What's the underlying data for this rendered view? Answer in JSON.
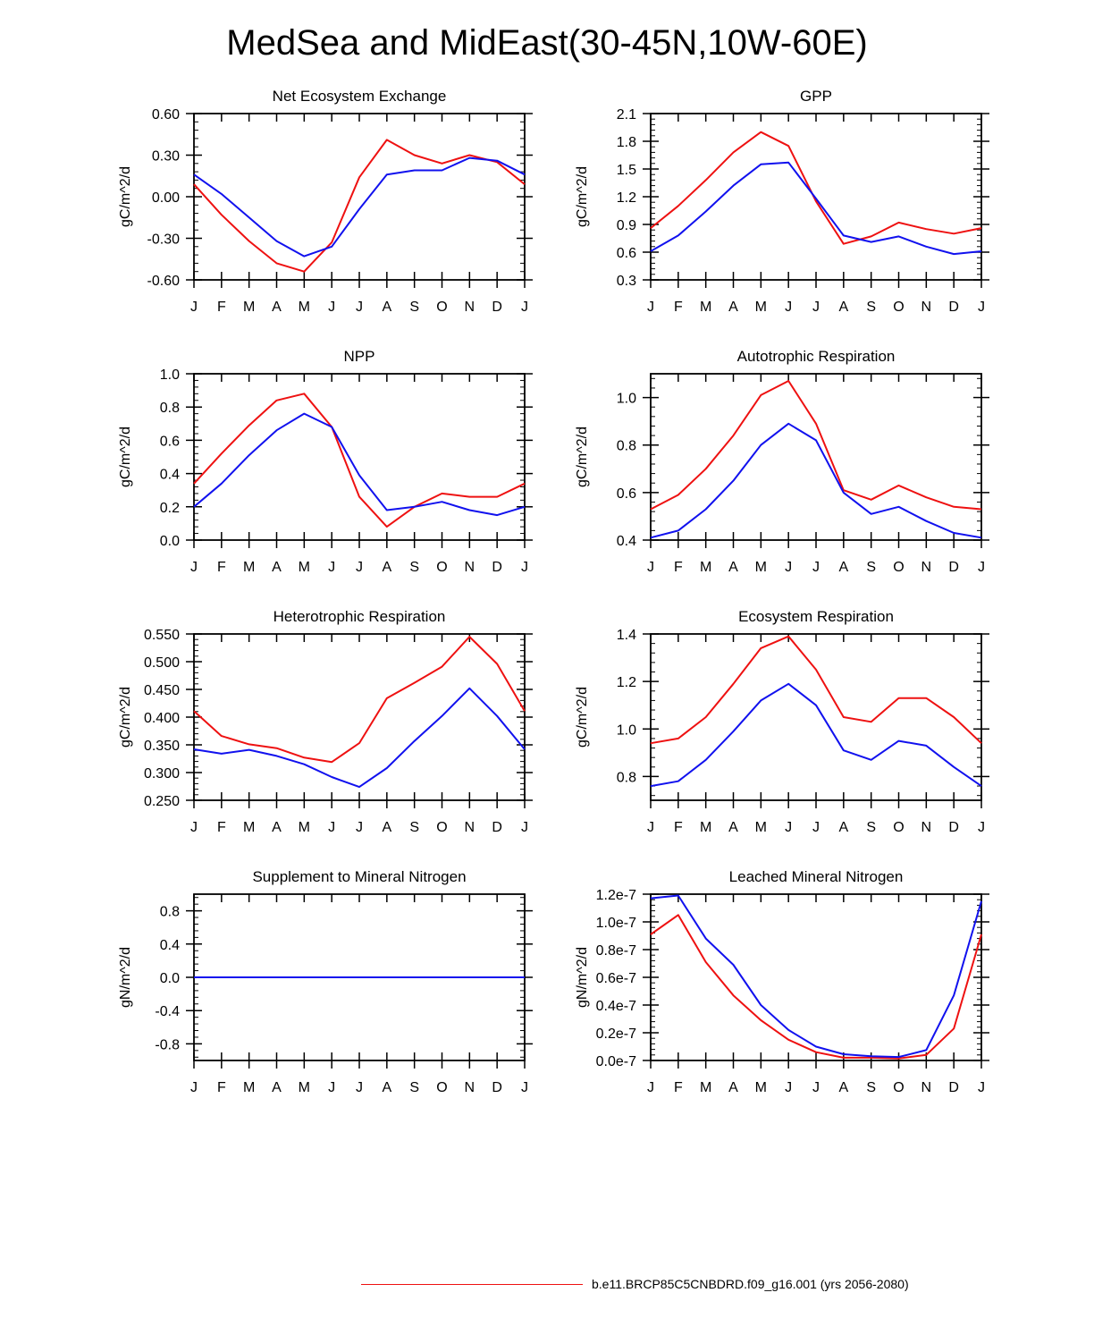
{
  "title": "MedSea and MidEast(30-45N,10W-60E)",
  "colors": {
    "series_red": "#ee1111",
    "series_blue": "#1111ee",
    "axis": "#000000"
  },
  "legend": {
    "label": "b.e11.BRCP85C5CNBDRD.f09_g16.001 (yrs 2056-2080)",
    "color": "#ee1111"
  },
  "chart_data": [
    {
      "type": "line",
      "title": "Net Ecosystem Exchange",
      "xlabel": "",
      "ylabel": "gC/m^2/d",
      "categories": [
        "J",
        "F",
        "M",
        "A",
        "M",
        "J",
        "J",
        "A",
        "S",
        "O",
        "N",
        "D",
        "J"
      ],
      "ylim": [
        -0.6,
        0.6
      ],
      "yticks": [
        -0.6,
        -0.3,
        0.0,
        0.3,
        0.6
      ],
      "ytick_labels": [
        "-0.60",
        "-0.30",
        "0.00",
        "0.30",
        "0.60"
      ],
      "series": [
        {
          "name": "red",
          "color": "#ee1111",
          "values": [
            0.09,
            -0.13,
            -0.32,
            -0.48,
            -0.54,
            -0.33,
            0.14,
            0.41,
            0.3,
            0.24,
            0.3,
            0.25,
            0.09
          ]
        },
        {
          "name": "blue",
          "color": "#1111ee",
          "values": [
            0.16,
            0.02,
            -0.15,
            -0.32,
            -0.43,
            -0.36,
            -0.09,
            0.16,
            0.19,
            0.19,
            0.28,
            0.26,
            0.16
          ]
        }
      ]
    },
    {
      "type": "line",
      "title": "GPP",
      "xlabel": "",
      "ylabel": "gC/m^2/d",
      "categories": [
        "J",
        "F",
        "M",
        "A",
        "M",
        "J",
        "J",
        "A",
        "S",
        "O",
        "N",
        "D",
        "J"
      ],
      "ylim": [
        0.3,
        2.1
      ],
      "yticks": [
        0.3,
        0.6,
        0.9,
        1.2,
        1.5,
        1.8,
        2.1
      ],
      "ytick_labels": [
        "0.3",
        "0.6",
        "0.9",
        "1.2",
        "1.5",
        "1.8",
        "2.1"
      ],
      "series": [
        {
          "name": "red",
          "color": "#ee1111",
          "values": [
            0.86,
            1.1,
            1.38,
            1.68,
            1.9,
            1.75,
            1.15,
            0.69,
            0.77,
            0.92,
            0.85,
            0.8,
            0.86
          ]
        },
        {
          "name": "blue",
          "color": "#1111ee",
          "values": [
            0.61,
            0.78,
            1.04,
            1.32,
            1.55,
            1.57,
            1.18,
            0.78,
            0.71,
            0.77,
            0.66,
            0.58,
            0.61
          ]
        }
      ]
    },
    {
      "type": "line",
      "title": "NPP",
      "xlabel": "",
      "ylabel": "gC/m^2/d",
      "categories": [
        "J",
        "F",
        "M",
        "A",
        "M",
        "J",
        "J",
        "A",
        "S",
        "O",
        "N",
        "D",
        "J"
      ],
      "ylim": [
        0.0,
        1.0
      ],
      "yticks": [
        0.0,
        0.2,
        0.4,
        0.6,
        0.8,
        1.0
      ],
      "ytick_labels": [
        "0.0",
        "0.2",
        "0.4",
        "0.6",
        "0.8",
        "1.0"
      ],
      "series": [
        {
          "name": "red",
          "color": "#ee1111",
          "values": [
            0.34,
            0.52,
            0.69,
            0.84,
            0.88,
            0.68,
            0.26,
            0.08,
            0.2,
            0.28,
            0.26,
            0.26,
            0.34
          ]
        },
        {
          "name": "blue",
          "color": "#1111ee",
          "values": [
            0.2,
            0.34,
            0.51,
            0.66,
            0.76,
            0.68,
            0.39,
            0.18,
            0.2,
            0.23,
            0.18,
            0.15,
            0.2
          ]
        }
      ]
    },
    {
      "type": "line",
      "title": "Autotrophic Respiration",
      "xlabel": "",
      "ylabel": "gC/m^2/d",
      "categories": [
        "J",
        "F",
        "M",
        "A",
        "M",
        "J",
        "J",
        "A",
        "S",
        "O",
        "N",
        "D",
        "J"
      ],
      "ylim": [
        0.4,
        1.1
      ],
      "yticks": [
        0.4,
        0.6,
        0.8,
        1.0
      ],
      "ytick_labels": [
        "0.4",
        "0.6",
        "0.8",
        "1.0"
      ],
      "series": [
        {
          "name": "red",
          "color": "#ee1111",
          "values": [
            0.53,
            0.59,
            0.7,
            0.84,
            1.01,
            1.07,
            0.89,
            0.61,
            0.57,
            0.63,
            0.58,
            0.54,
            0.53
          ]
        },
        {
          "name": "blue",
          "color": "#1111ee",
          "values": [
            0.41,
            0.44,
            0.53,
            0.65,
            0.8,
            0.89,
            0.82,
            0.6,
            0.51,
            0.54,
            0.48,
            0.43,
            0.41
          ]
        }
      ]
    },
    {
      "type": "line",
      "title": "Heterotrophic Respiration",
      "xlabel": "",
      "ylabel": "gC/m^2/d",
      "categories": [
        "J",
        "F",
        "M",
        "A",
        "M",
        "J",
        "J",
        "A",
        "S",
        "O",
        "N",
        "D",
        "J"
      ],
      "ylim": [
        0.25,
        0.55
      ],
      "yticks": [
        0.25,
        0.3,
        0.35,
        0.4,
        0.45,
        0.5,
        0.55
      ],
      "ytick_labels": [
        "0.250",
        "0.300",
        "0.350",
        "0.400",
        "0.450",
        "0.500",
        "0.550"
      ],
      "series": [
        {
          "name": "red",
          "color": "#ee1111",
          "values": [
            0.411,
            0.366,
            0.351,
            0.344,
            0.327,
            0.319,
            0.353,
            0.434,
            0.462,
            0.491,
            0.545,
            0.496,
            0.411
          ]
        },
        {
          "name": "blue",
          "color": "#1111ee",
          "values": [
            0.342,
            0.334,
            0.341,
            0.33,
            0.315,
            0.292,
            0.274,
            0.308,
            0.357,
            0.402,
            0.452,
            0.402,
            0.342
          ]
        }
      ]
    },
    {
      "type": "line",
      "title": "Ecosystem Respiration",
      "xlabel": "",
      "ylabel": "gC/m^2/d",
      "categories": [
        "J",
        "F",
        "M",
        "A",
        "M",
        "J",
        "J",
        "A",
        "S",
        "O",
        "N",
        "D",
        "J"
      ],
      "ylim": [
        0.7,
        1.4
      ],
      "yticks": [
        0.8,
        1.0,
        1.2,
        1.4
      ],
      "ytick_labels": [
        "0.8",
        "1.0",
        "1.2",
        "1.4"
      ],
      "series": [
        {
          "name": "red",
          "color": "#ee1111",
          "values": [
            0.94,
            0.96,
            1.05,
            1.19,
            1.34,
            1.39,
            1.25,
            1.05,
            1.03,
            1.13,
            1.13,
            1.05,
            0.94
          ]
        },
        {
          "name": "blue",
          "color": "#1111ee",
          "values": [
            0.76,
            0.78,
            0.87,
            0.99,
            1.12,
            1.19,
            1.1,
            0.91,
            0.87,
            0.95,
            0.93,
            0.84,
            0.76
          ]
        }
      ]
    },
    {
      "type": "line",
      "title": "Supplement to Mineral Nitrogen",
      "xlabel": "",
      "ylabel": "gN/m^2/d",
      "categories": [
        "J",
        "F",
        "M",
        "A",
        "M",
        "J",
        "J",
        "A",
        "S",
        "O",
        "N",
        "D",
        "J"
      ],
      "ylim": [
        -1.0,
        1.0
      ],
      "yticks": [
        -0.8,
        -0.4,
        0.0,
        0.4,
        0.8
      ],
      "ytick_labels": [
        "-0.8",
        "-0.4",
        "0.0",
        "0.4",
        "0.8"
      ],
      "series": [
        {
          "name": "red",
          "color": "#ee1111",
          "values": [
            0,
            0,
            0,
            0,
            0,
            0,
            0,
            0,
            0,
            0,
            0,
            0,
            0
          ]
        },
        {
          "name": "blue",
          "color": "#1111ee",
          "values": [
            0,
            0,
            0,
            0,
            0,
            0,
            0,
            0,
            0,
            0,
            0,
            0,
            0
          ]
        }
      ]
    },
    {
      "type": "line",
      "title": "Leached Mineral Nitrogen",
      "xlabel": "",
      "ylabel": "gN/m^2/d",
      "categories": [
        "J",
        "F",
        "M",
        "A",
        "M",
        "J",
        "J",
        "A",
        "S",
        "O",
        "N",
        "D",
        "J"
      ],
      "ylim": [
        0.0,
        1.2e-07
      ],
      "yticks": [
        0.0,
        2e-08,
        4e-08,
        6e-08,
        8e-08,
        1e-07,
        1.2e-07
      ],
      "ytick_labels": [
        "0.0e-7",
        "0.2e-7",
        "0.4e-7",
        "0.6e-7",
        "0.8e-7",
        "1.0e-7",
        "1.2e-7"
      ],
      "series": [
        {
          "name": "red",
          "color": "#ee1111",
          "values": [
            9.1e-08,
            1.05e-07,
            7.1e-08,
            4.7e-08,
            2.9e-08,
            1.5e-08,
            6e-09,
            2e-09,
            2e-09,
            1.5e-09,
            4e-09,
            2.3e-08,
            9.1e-08
          ]
        },
        {
          "name": "blue",
          "color": "#1111ee",
          "values": [
            1.17e-07,
            1.19e-07,
            8.8e-08,
            6.9e-08,
            4e-08,
            2.2e-08,
            1e-08,
            4.5e-09,
            3e-09,
            2.5e-09,
            7.5e-09,
            4.7e-08,
            1.15e-07
          ]
        }
      ]
    }
  ]
}
